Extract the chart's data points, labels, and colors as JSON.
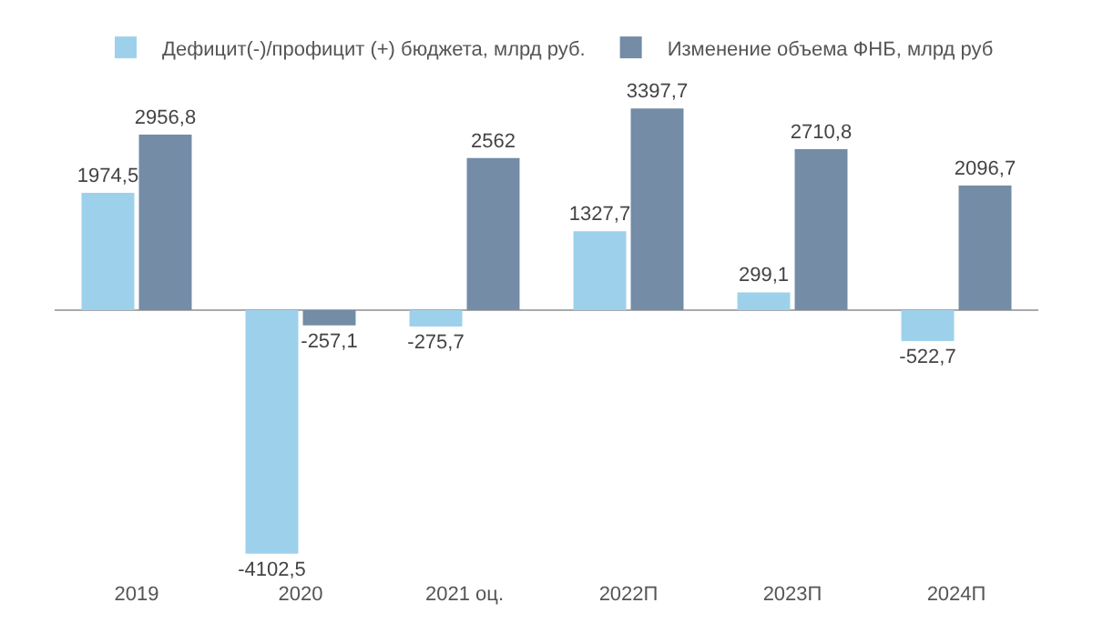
{
  "chart_data": {
    "type": "bar",
    "categories": [
      "2019",
      "2020",
      "2021 оц.",
      "2022П",
      "2023П",
      "2024П"
    ],
    "series": [
      {
        "name": "Дефицит(-)/профицит (+) бюджета, млрд руб.",
        "color": "#9dd1eb",
        "values": [
          1974.5,
          -4102.5,
          -275.7,
          1327.7,
          299.1,
          -522.7
        ],
        "value_labels": [
          "1974,5",
          "-4102,5",
          "-275,7",
          "1327,7",
          "299,1",
          "-522,7"
        ]
      },
      {
        "name": "Изменение объема ФНБ, млрд руб",
        "color": "#748ca6",
        "values": [
          2956.8,
          -257.1,
          2562,
          3397.7,
          2710.8,
          2096.7
        ],
        "value_labels": [
          "2956,8",
          "-257,1",
          "2562",
          "3397,7",
          "2710,8",
          "2096,7"
        ]
      }
    ],
    "legend": "top"
  }
}
